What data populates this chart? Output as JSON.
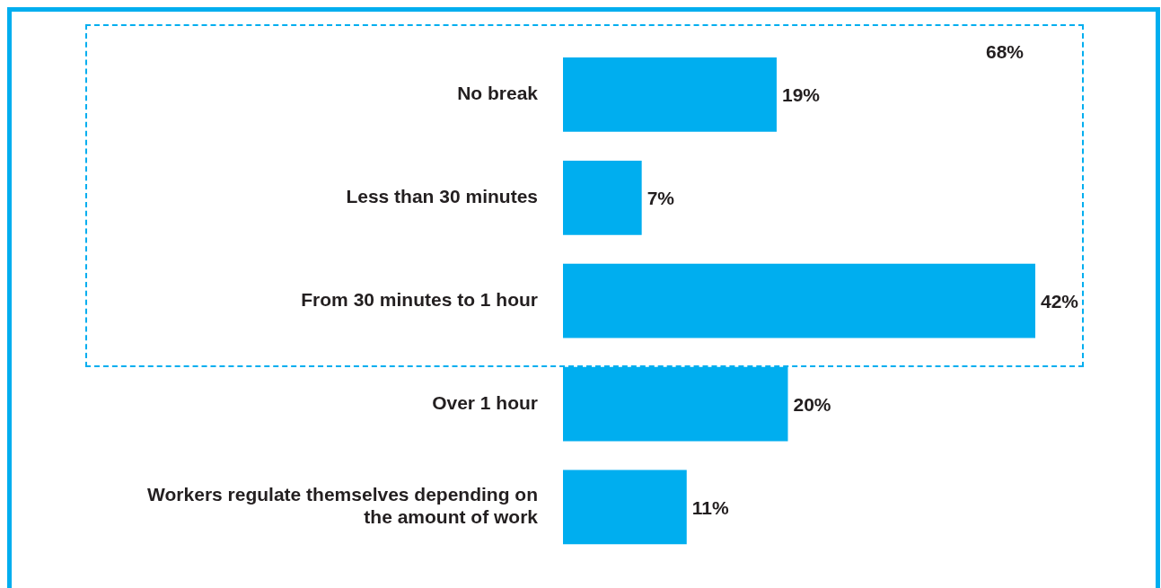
{
  "chart_data": {
    "type": "bar",
    "orientation": "horizontal",
    "categories": [
      "No break",
      "Less than 30 minutes",
      "From 30 minutes to 1 hour",
      "Over 1 hour",
      "Workers regulate themselves depending on the amount of work"
    ],
    "values": [
      19,
      7,
      42,
      20,
      11
    ],
    "value_labels": [
      "19%",
      "7%",
      "42%",
      "20%",
      "11%"
    ],
    "color": "#00aeef",
    "annotations": [
      "68%"
    ],
    "legend": false
  }
}
